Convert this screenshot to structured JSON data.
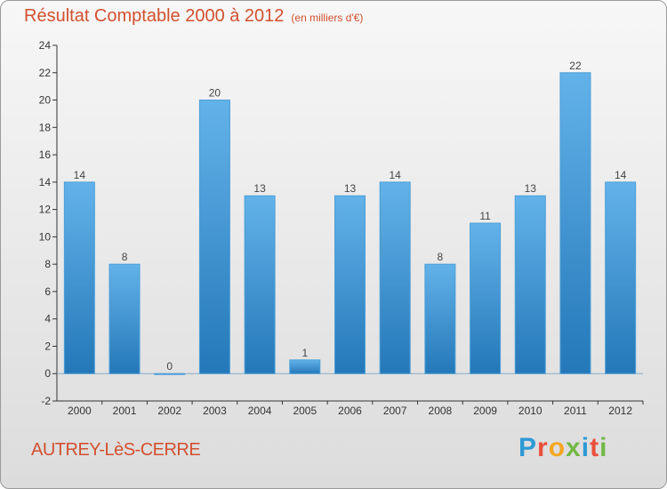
{
  "header": {
    "title": "Résultat Comptable 2000 à 2012",
    "subtitle": "(en milliers d'€)"
  },
  "footer": {
    "commune": "AUTREY-LèS-CERRE",
    "logo_letters": [
      "P",
      "r",
      "o",
      "x",
      "i",
      "t",
      "i"
    ],
    "logo_colors": [
      "#2e9ad6",
      "#e94e3c",
      "#f5a623",
      "#73b845",
      "#2e9ad6",
      "#e94e3c",
      "#73b845"
    ]
  },
  "colors": {
    "accent": "#d2502f",
    "bar_light": "#63b2ea",
    "bar_dark": "#2478b8",
    "label": "#444444"
  },
  "chart_data": {
    "type": "bar",
    "title": "Résultat Comptable 2000 à 2012",
    "subtitle": "(en milliers d'€)",
    "categories": [
      "2000",
      "2001",
      "2002",
      "2003",
      "2004",
      "2005",
      "2006",
      "2007",
      "2008",
      "2009",
      "2010",
      "2011",
      "2012"
    ],
    "values": [
      14,
      8,
      0,
      20,
      13,
      1,
      13,
      14,
      8,
      11,
      13,
      22,
      14
    ],
    "ylim": [
      -2,
      24
    ],
    "yticks": [
      -2,
      0,
      2,
      4,
      6,
      8,
      10,
      12,
      14,
      16,
      18,
      20,
      22,
      24
    ],
    "grid": false,
    "data_labels": true
  }
}
